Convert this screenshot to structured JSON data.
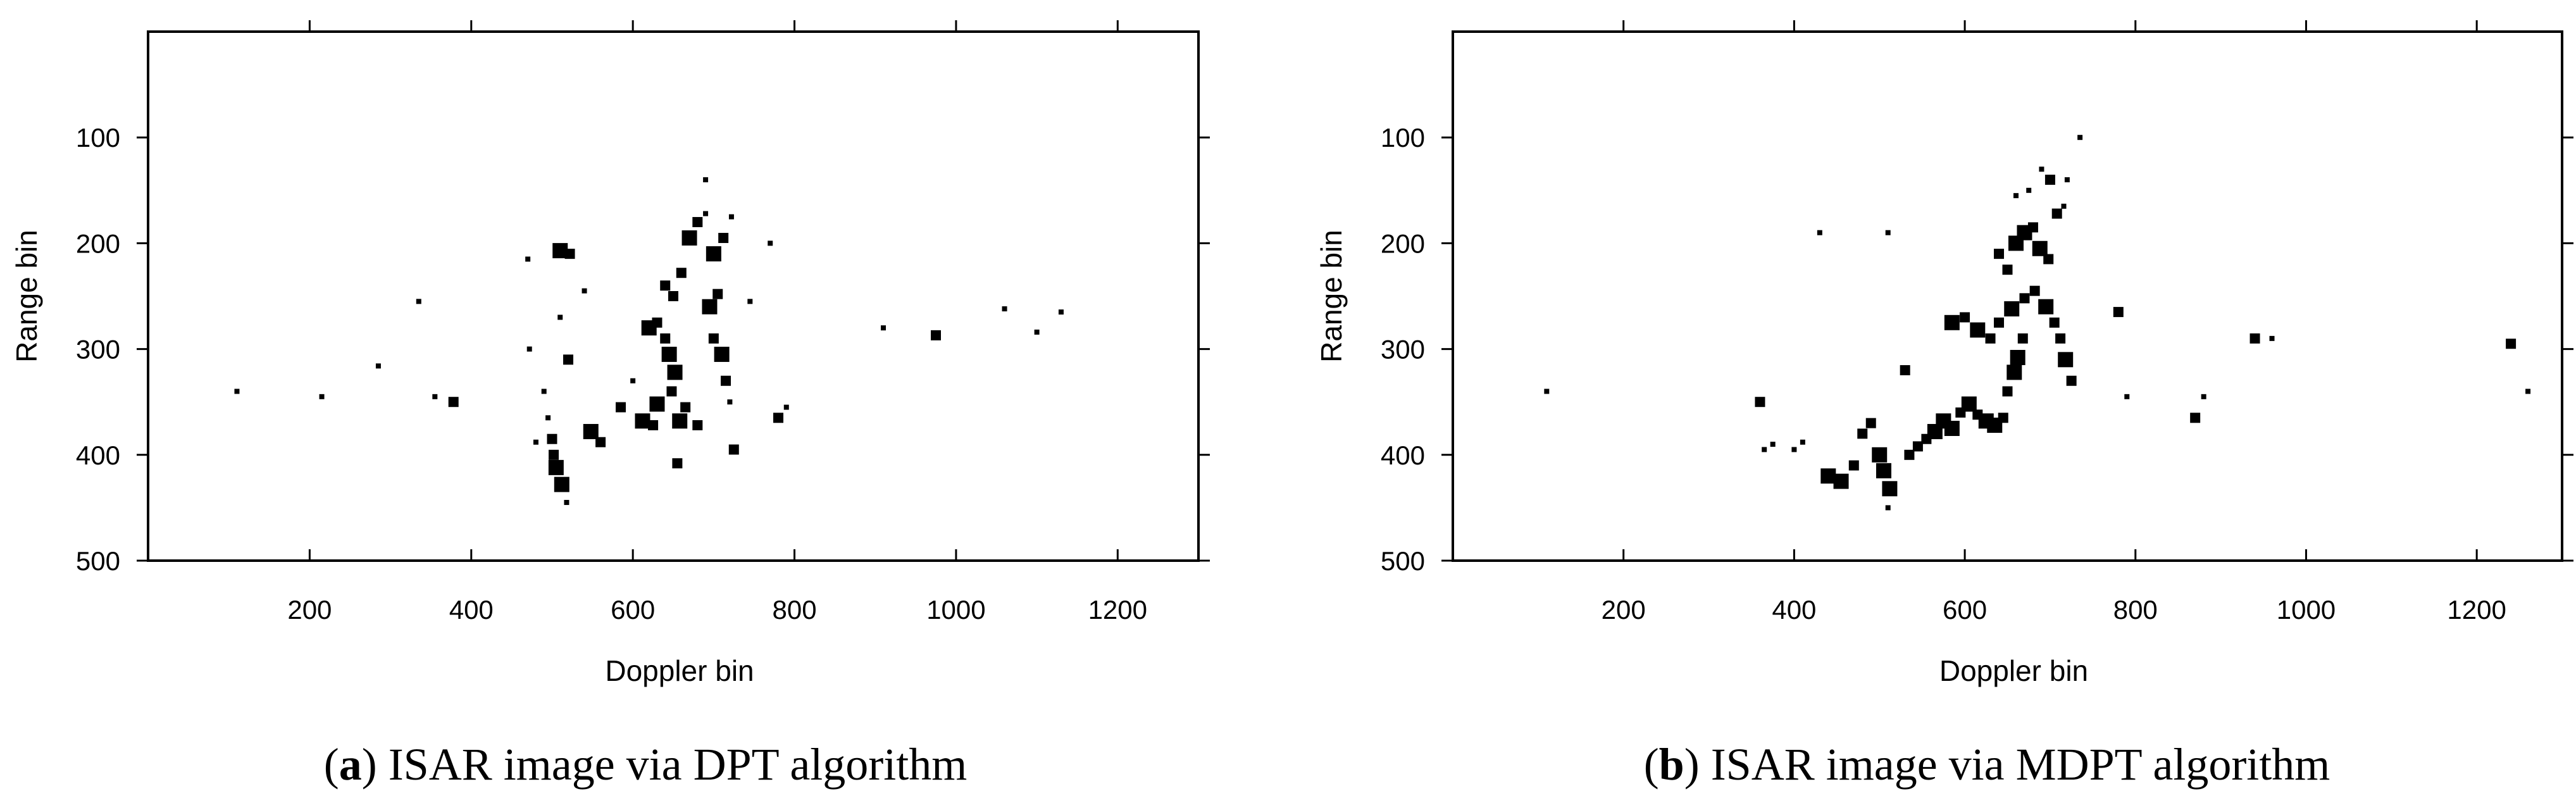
{
  "figure": {
    "panels": [
      {
        "id": "a",
        "caption_letter": "a",
        "caption_text": " ISAR image via DPT algorithm",
        "chart_data": {
          "type": "scatter",
          "title": "",
          "xlabel": "Doppler bin",
          "ylabel": "Range bin",
          "xlim": [
            0,
            1300
          ],
          "ylim": [
            0,
            500
          ],
          "y_inverted": true,
          "grid": false,
          "x_ticks": [
            200,
            400,
            600,
            800,
            1000,
            1200
          ],
          "y_ticks": [
            100,
            200,
            300,
            400,
            500
          ],
          "marker_color": "#000000",
          "points": [
            [
              110,
              340,
              1
            ],
            [
              215,
              345,
              1
            ],
            [
              285,
              316,
              1
            ],
            [
              335,
              255,
              1
            ],
            [
              355,
              345,
              1
            ],
            [
              378,
              350,
              2
            ],
            [
              470,
              215,
              1
            ],
            [
              472,
              300,
              1
            ],
            [
              480,
              388,
              1
            ],
            [
              490,
              340,
              1
            ],
            [
              495,
              365,
              1
            ],
            [
              500,
              385,
              2
            ],
            [
              502,
              400,
              2
            ],
            [
              505,
              412,
              3
            ],
            [
              512,
              428,
              3
            ],
            [
              518,
              445,
              1
            ],
            [
              510,
              207,
              3
            ],
            [
              522,
              210,
              2
            ],
            [
              510,
              270,
              1
            ],
            [
              520,
              310,
              2
            ],
            [
              540,
              245,
              1
            ],
            [
              548,
              378,
              3
            ],
            [
              560,
              388,
              2
            ],
            [
              585,
              355,
              2
            ],
            [
              600,
              330,
              1
            ],
            [
              612,
              368,
              3
            ],
            [
              625,
              372,
              2
            ],
            [
              630,
              352,
              3
            ],
            [
              620,
              280,
              3
            ],
            [
              630,
              275,
              2
            ],
            [
              640,
              290,
              2
            ],
            [
              645,
              305,
              3
            ],
            [
              652,
              322,
              3
            ],
            [
              648,
              340,
              2
            ],
            [
              658,
              368,
              3
            ],
            [
              655,
              408,
              2
            ],
            [
              665,
              355,
              2
            ],
            [
              680,
              372,
              2
            ],
            [
              640,
              240,
              2
            ],
            [
              650,
              250,
              2
            ],
            [
              660,
              228,
              2
            ],
            [
              670,
              195,
              3
            ],
            [
              680,
              180,
              2
            ],
            [
              690,
              172,
              1
            ],
            [
              695,
              260,
              3
            ],
            [
              705,
              248,
              2
            ],
            [
              700,
              290,
              2
            ],
            [
              710,
              305,
              3
            ],
            [
              715,
              330,
              2
            ],
            [
              720,
              350,
              1
            ],
            [
              700,
              210,
              3
            ],
            [
              712,
              195,
              2
            ],
            [
              722,
              175,
              1
            ],
            [
              690,
              140,
              1
            ],
            [
              725,
              395,
              2
            ],
            [
              745,
              255,
              1
            ],
            [
              770,
              200,
              1
            ],
            [
              780,
              365,
              2
            ],
            [
              790,
              355,
              1
            ],
            [
              910,
              280,
              1
            ],
            [
              975,
              287,
              2
            ],
            [
              1060,
              262,
              1
            ],
            [
              1100,
              284,
              1
            ],
            [
              1130,
              265,
              1
            ]
          ]
        }
      },
      {
        "id": "b",
        "caption_letter": "b",
        "caption_text": " ISAR image via MDPT algorithm",
        "chart_data": {
          "type": "scatter",
          "title": "",
          "xlabel": "Doppler bin",
          "ylabel": "Range bin",
          "xlim": [
            0,
            1300
          ],
          "ylim": [
            0,
            500
          ],
          "y_inverted": true,
          "grid": false,
          "x_ticks": [
            200,
            400,
            600,
            800,
            1000,
            1200
          ],
          "y_ticks": [
            100,
            200,
            300,
            400,
            500
          ],
          "marker_color": "#000000",
          "points": [
            [
              110,
              340,
              1
            ],
            [
              360,
              350,
              2
            ],
            [
              365,
              395,
              1
            ],
            [
              375,
              390,
              1
            ],
            [
              400,
              395,
              1
            ],
            [
              410,
              388,
              1
            ],
            [
              430,
              190,
              1
            ],
            [
              440,
              420,
              3
            ],
            [
              455,
              425,
              3
            ],
            [
              470,
              410,
              2
            ],
            [
              480,
              380,
              2
            ],
            [
              490,
              370,
              2
            ],
            [
              500,
              400,
              3
            ],
            [
              505,
              415,
              3
            ],
            [
              512,
              432,
              3
            ],
            [
              510,
              450,
              1
            ],
            [
              510,
              190,
              1
            ],
            [
              530,
              320,
              2
            ],
            [
              535,
              400,
              2
            ],
            [
              545,
              392,
              2
            ],
            [
              555,
              385,
              2
            ],
            [
              565,
              378,
              3
            ],
            [
              575,
              368,
              3
            ],
            [
              585,
              375,
              3
            ],
            [
              595,
              360,
              2
            ],
            [
              605,
              352,
              3
            ],
            [
              615,
              362,
              2
            ],
            [
              625,
              368,
              3
            ],
            [
              635,
              372,
              3
            ],
            [
              645,
              365,
              2
            ],
            [
              650,
              340,
              2
            ],
            [
              658,
              322,
              3
            ],
            [
              662,
              308,
              3
            ],
            [
              668,
              290,
              2
            ],
            [
              585,
              275,
              3
            ],
            [
              600,
              270,
              2
            ],
            [
              615,
              282,
              3
            ],
            [
              630,
              290,
              2
            ],
            [
              640,
              275,
              2
            ],
            [
              655,
              262,
              3
            ],
            [
              670,
              252,
              2
            ],
            [
              682,
              245,
              2
            ],
            [
              695,
              260,
              3
            ],
            [
              705,
              275,
              2
            ],
            [
              712,
              290,
              2
            ],
            [
              718,
              310,
              3
            ],
            [
              725,
              330,
              2
            ],
            [
              640,
              210,
              2
            ],
            [
              650,
              225,
              2
            ],
            [
              660,
              200,
              3
            ],
            [
              670,
              190,
              3
            ],
            [
              680,
              185,
              2
            ],
            [
              688,
              205,
              3
            ],
            [
              698,
              215,
              2
            ],
            [
              708,
              172,
              2
            ],
            [
              716,
              165,
              1
            ],
            [
              720,
              140,
              1
            ],
            [
              700,
              140,
              2
            ],
            [
              675,
              150,
              1
            ],
            [
              660,
              155,
              1
            ],
            [
              690,
              130,
              1
            ],
            [
              735,
              100,
              1
            ],
            [
              780,
              265,
              2
            ],
            [
              790,
              345,
              1
            ],
            [
              870,
              365,
              2
            ],
            [
              880,
              345,
              1
            ],
            [
              940,
              290,
              2
            ],
            [
              960,
              290,
              1
            ],
            [
              1240,
              295,
              2
            ],
            [
              1260,
              340,
              1
            ]
          ]
        }
      }
    ]
  }
}
